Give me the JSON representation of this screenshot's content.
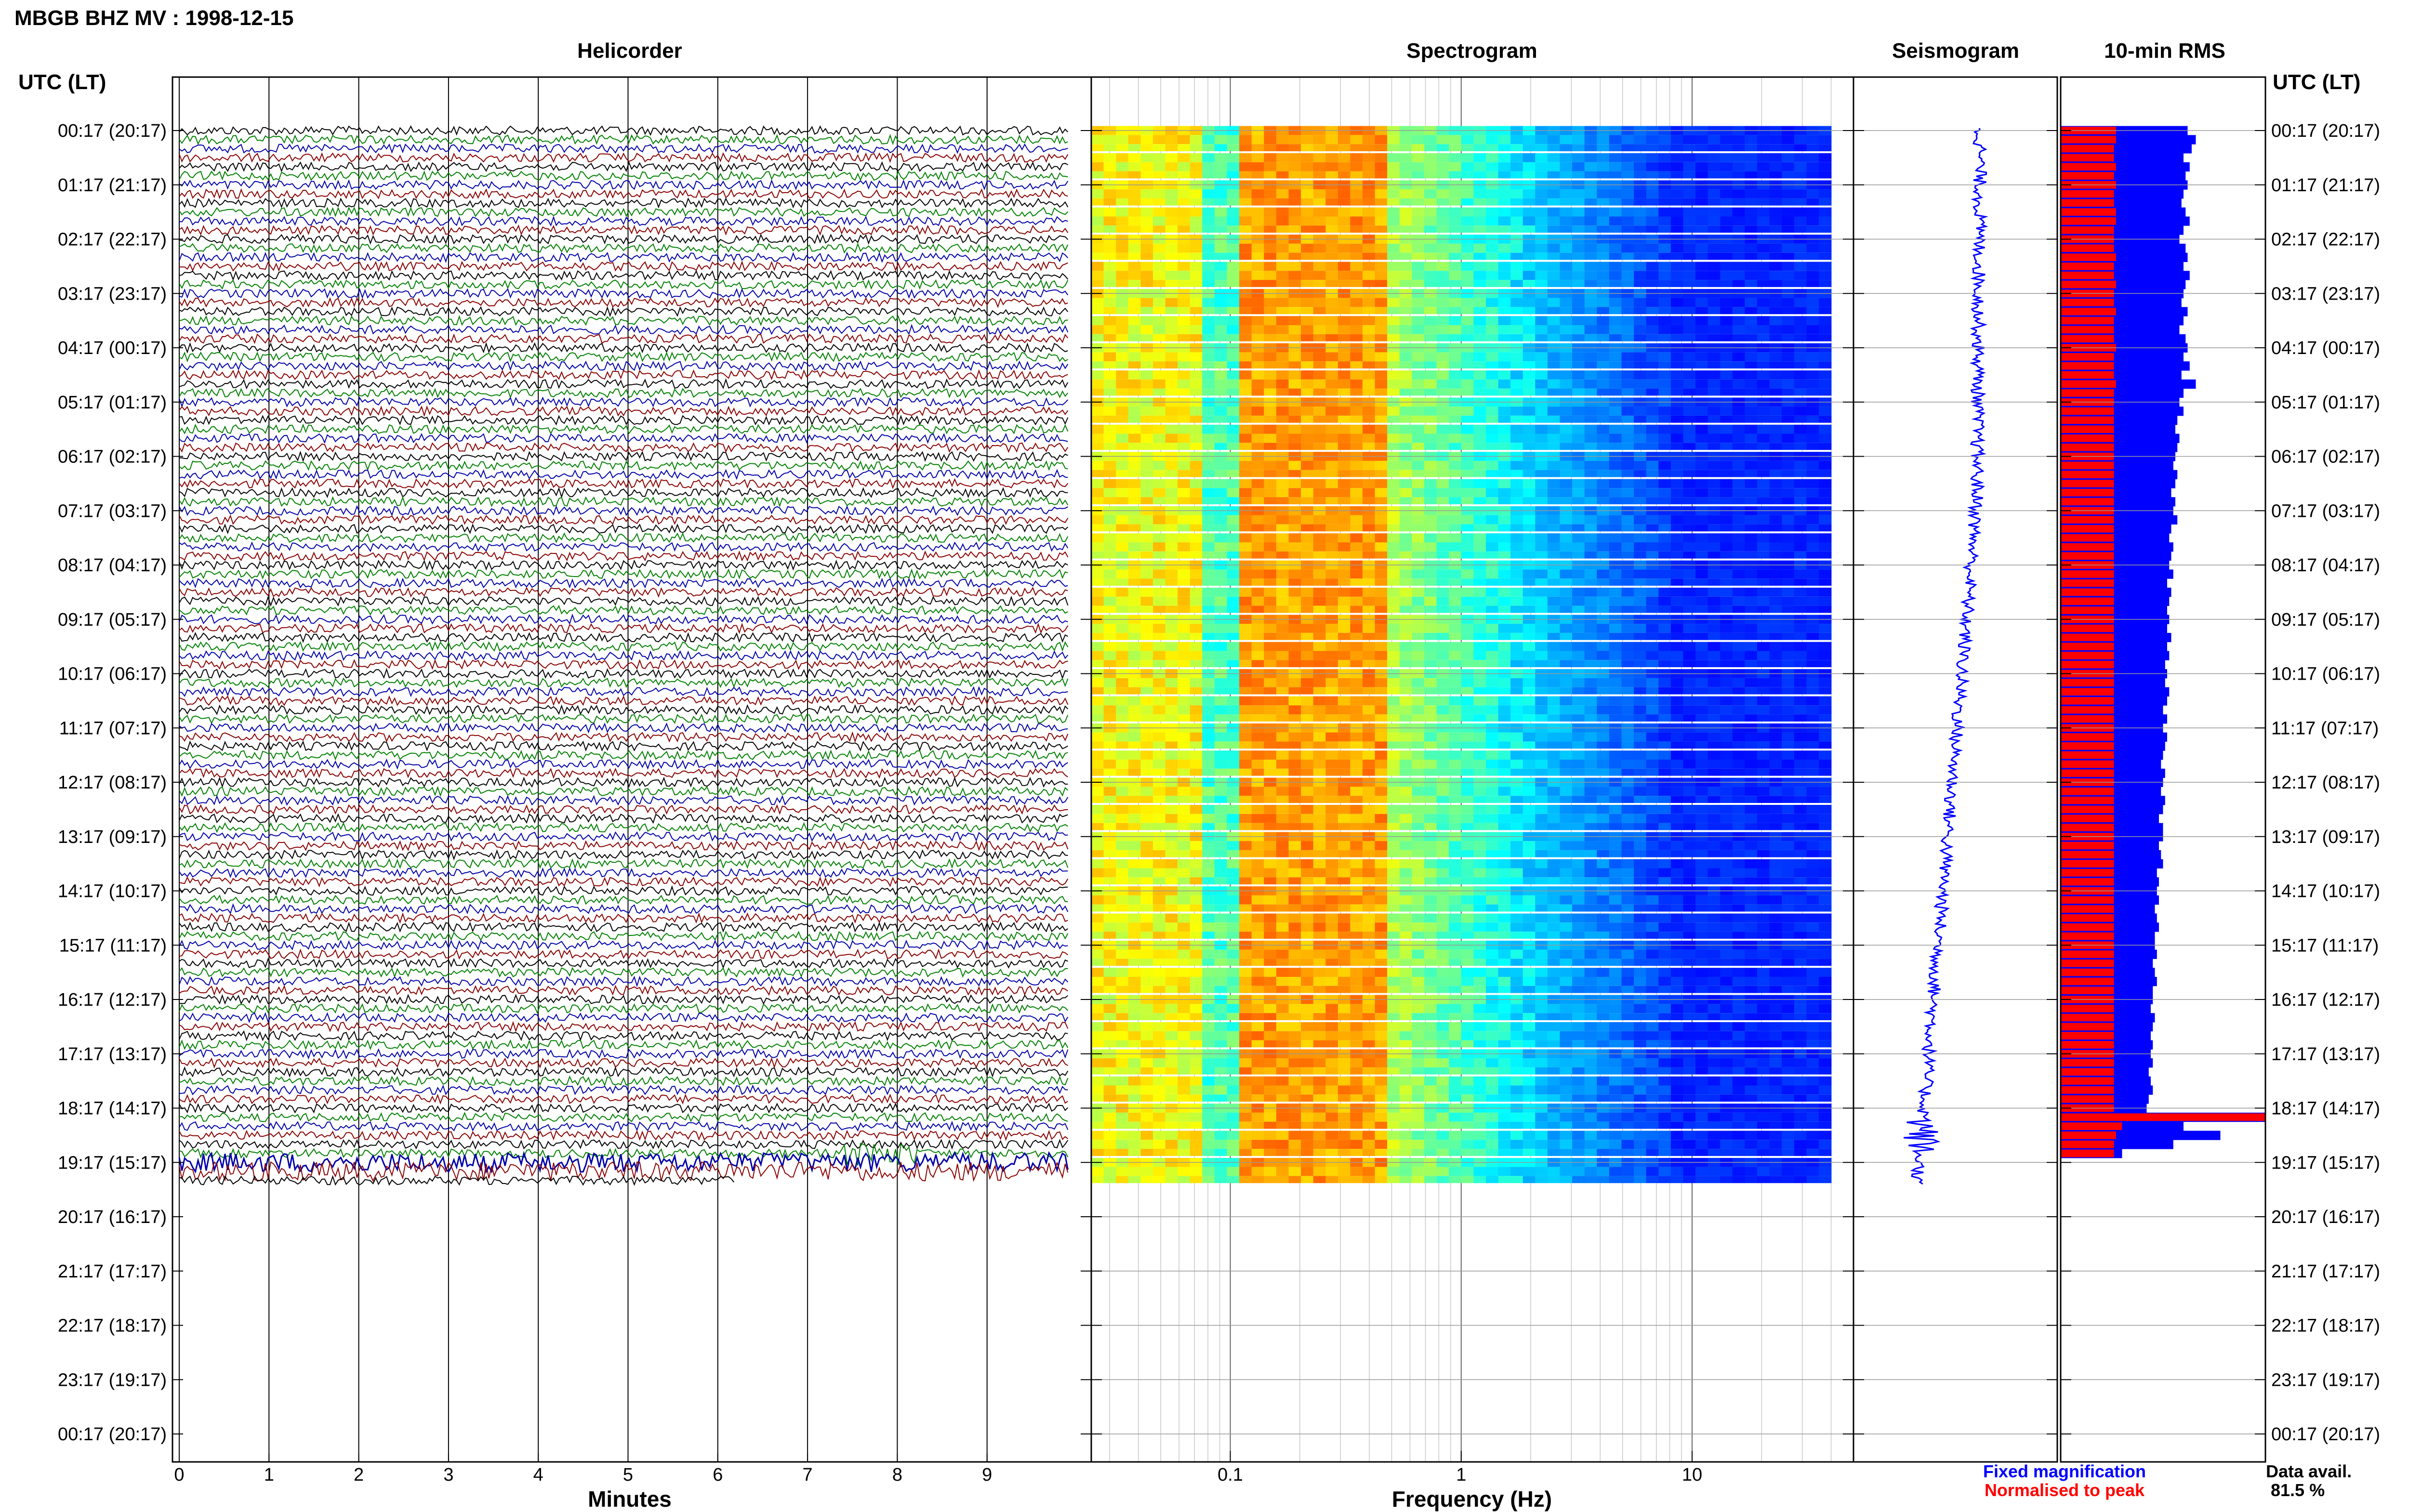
{
  "title": "MBGB BHZ MV : 1998-12-15",
  "panels": {
    "helicorder": "Helicorder",
    "spectrogram": "Spectrogram",
    "seismogram": "Seismogram",
    "rms": "10-min RMS"
  },
  "axis_labels": {
    "tz_left": "UTC (LT)",
    "tz_right": "UTC (LT)",
    "helicorder_x": "Minutes",
    "spectrogram_x": "Frequency (Hz)"
  },
  "legend": {
    "fixed": "Fixed magnification",
    "normalised": "Normalised to peak",
    "avail_label": "Data avail.",
    "avail_value": "81.5 %"
  },
  "colors": {
    "fixed": "#0000ff",
    "normalised": "#ff0000",
    "trace_cycle": [
      "#000000",
      "#008000",
      "#0000aa",
      "#8b0000"
    ]
  },
  "chart_data": {
    "type": "heatmap",
    "time_labels": [
      "00:17 (20:17)",
      "01:17 (21:17)",
      "02:17 (22:17)",
      "03:17 (23:17)",
      "04:17 (00:17)",
      "05:17 (01:17)",
      "06:17 (02:17)",
      "07:17 (03:17)",
      "08:17 (04:17)",
      "09:17 (05:17)",
      "10:17 (06:17)",
      "11:17 (07:17)",
      "12:17 (08:17)",
      "13:17 (09:17)",
      "14:17 (10:17)",
      "15:17 (11:17)",
      "16:17 (12:17)",
      "17:17 (13:17)",
      "18:17 (14:17)",
      "19:17 (15:17)",
      "20:17 (16:17)",
      "21:17 (17:17)",
      "22:17 (18:17)",
      "23:17 (19:17)",
      "00:17 (20:17)"
    ],
    "helicorder": {
      "x_ticks": [
        "0",
        "1",
        "2",
        "3",
        "4",
        "5",
        "6",
        "7",
        "8",
        "9"
      ],
      "xlim": [
        0,
        10
      ],
      "lines_per_hour": 6,
      "data_hours": 19.5
    },
    "spectrogram": {
      "x_scale": "log",
      "x_ticks": [
        {
          "value": 0.1,
          "label": "0.1"
        },
        {
          "value": 1,
          "label": "1"
        },
        {
          "value": 10,
          "label": "10"
        }
      ],
      "xlim": [
        0.025,
        50
      ],
      "data_fmax": 40
    },
    "rms": {
      "series": [
        {
          "name": "Fixed magnification",
          "color": "#0000ff",
          "values": [
            0.62,
            0.66,
            0.64,
            0.6,
            0.63,
            0.61,
            0.62,
            0.6,
            0.59,
            0.61,
            0.63,
            0.6,
            0.58,
            0.61,
            0.62,
            0.6,
            0.63,
            0.61,
            0.6,
            0.59,
            0.62,
            0.6,
            0.58,
            0.61,
            0.62,
            0.6,
            0.63,
            0.59,
            0.66,
            0.6,
            0.58,
            0.6,
            0.57,
            0.56,
            0.58,
            0.57,
            0.56,
            0.55,
            0.57,
            0.56,
            0.54,
            0.56,
            0.55,
            0.57,
            0.54,
            0.53,
            0.55,
            0.54,
            0.53,
            0.55,
            0.52,
            0.54,
            0.53,
            0.52,
            0.53,
            0.52,
            0.54,
            0.52,
            0.53,
            0.51,
            0.52,
            0.51,
            0.53,
            0.52,
            0.5,
            0.52,
            0.5,
            0.52,
            0.51,
            0.5,
            0.49,
            0.51,
            0.5,
            0.49,
            0.51,
            0.5,
            0.48,
            0.5,
            0.5,
            0.48,
            0.49,
            0.5,
            0.47,
            0.48,
            0.47,
            0.48,
            0.46,
            0.47,
            0.48,
            0.46,
            0.46,
            0.47,
            0.45,
            0.46,
            0.47,
            0.45,
            0.45,
            0.44,
            0.46,
            0.45,
            0.44,
            0.45,
            0.44,
            0.45,
            0.43,
            0.44,
            0.45,
            0.43,
            0.42,
            1.0,
            0.6,
            0.78,
            0.55,
            0.3
          ]
        },
        {
          "name": "Normalised to peak",
          "color": "#ff0000",
          "values": [
            0.27,
            0.27,
            0.26,
            0.26,
            0.27,
            0.26,
            0.27,
            0.26,
            0.26,
            0.27,
            0.27,
            0.26,
            0.26,
            0.26,
            0.27,
            0.26,
            0.26,
            0.27,
            0.26,
            0.26,
            0.27,
            0.26,
            0.26,
            0.26,
            0.27,
            0.26,
            0.26,
            0.26,
            0.27,
            0.26,
            0.26,
            0.26,
            0.26,
            0.26,
            0.26,
            0.26,
            0.26,
            0.26,
            0.26,
            0.26,
            0.26,
            0.26,
            0.26,
            0.26,
            0.26,
            0.26,
            0.26,
            0.26,
            0.26,
            0.26,
            0.26,
            0.26,
            0.26,
            0.26,
            0.26,
            0.26,
            0.26,
            0.26,
            0.26,
            0.26,
            0.26,
            0.26,
            0.26,
            0.26,
            0.26,
            0.26,
            0.26,
            0.26,
            0.26,
            0.26,
            0.26,
            0.26,
            0.26,
            0.26,
            0.26,
            0.26,
            0.26,
            0.26,
            0.26,
            0.26,
            0.26,
            0.26,
            0.26,
            0.26,
            0.26,
            0.26,
            0.26,
            0.26,
            0.26,
            0.26,
            0.26,
            0.26,
            0.26,
            0.26,
            0.26,
            0.26,
            0.26,
            0.26,
            0.26,
            0.26,
            0.26,
            0.26,
            0.26,
            0.26,
            0.26,
            0.26,
            0.26,
            0.26,
            0.26,
            1.0,
            0.3,
            0.27,
            0.26,
            0.26
          ]
        }
      ]
    }
  }
}
